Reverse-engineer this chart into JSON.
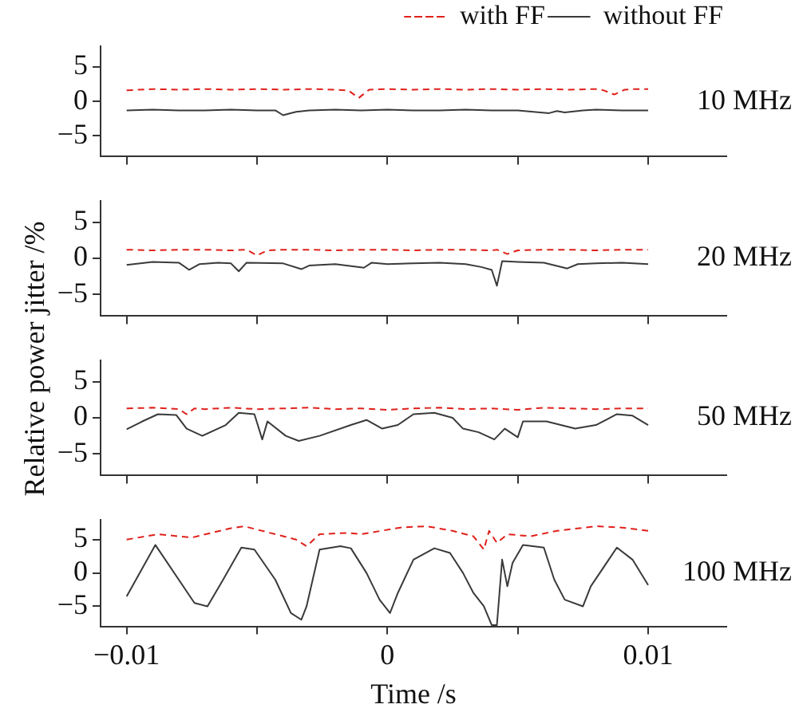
{
  "chart_data": [
    {
      "type": "line",
      "ylabel": "Relative power jitter /%",
      "legend": "top right",
      "annotations": [
        "10 MHz"
      ],
      "grid": false,
      "tick_labels": "y",
      "xlim": [
        -0.011,
        0.013
      ],
      "xticks": [
        {
          "value": -0.01,
          "label": null
        },
        {
          "value": -0.005,
          "label": null
        },
        {
          "value": 0,
          "label": null
        },
        {
          "value": 0.005,
          "label": null
        },
        {
          "value": 0.01,
          "label": null
        }
      ],
      "ylim": [
        -8,
        8
      ],
      "yticks": [
        -5,
        0,
        5
      ],
      "series": [
        {
          "name": "with FF",
          "color": "#e0201b",
          "line_style": "dashed",
          "x": [
            -0.01,
            -0.009,
            -0.008,
            -0.007,
            -0.006,
            -0.005,
            -0.004,
            -0.003,
            -0.002,
            -0.0015,
            -0.0011,
            -0.0007,
            0,
            0.001,
            0.002,
            0.003,
            0.004,
            0.005,
            0.006,
            0.007,
            0.008,
            0.0083,
            0.0087,
            0.0091,
            0.0095,
            0.01
          ],
          "values": [
            1.6,
            1.8,
            1.7,
            1.8,
            1.7,
            1.8,
            1.7,
            1.8,
            1.7,
            1.6,
            0.5,
            1.7,
            1.8,
            1.7,
            1.8,
            1.7,
            1.8,
            1.7,
            1.8,
            1.7,
            1.8,
            1.6,
            1.0,
            1.7,
            1.8,
            1.8
          ]
        },
        {
          "name": "without FF",
          "color": "#3a3a3a",
          "line_style": "solid",
          "x": [
            -0.01,
            -0.009,
            -0.008,
            -0.007,
            -0.006,
            -0.005,
            -0.0043,
            -0.004,
            -0.0038,
            -0.0035,
            -0.003,
            -0.002,
            -0.001,
            0,
            0.001,
            0.002,
            0.003,
            0.004,
            0.005,
            0.0062,
            0.0065,
            0.0068,
            0.0075,
            0.008,
            0.009,
            0.01
          ],
          "values": [
            -1.3,
            -1.2,
            -1.3,
            -1.3,
            -1.2,
            -1.3,
            -1.3,
            -2.0,
            -1.8,
            -1.5,
            -1.3,
            -1.2,
            -1.3,
            -1.2,
            -1.3,
            -1.3,
            -1.2,
            -1.3,
            -1.3,
            -1.7,
            -1.4,
            -1.6,
            -1.3,
            -1.2,
            -1.3,
            -1.3
          ]
        }
      ]
    },
    {
      "type": "line",
      "annotations": [
        "20 MHz"
      ],
      "grid": false,
      "tick_labels": "y",
      "xlim": [
        -0.011,
        0.013
      ],
      "xticks": [
        {
          "value": -0.01,
          "label": null
        },
        {
          "value": -0.005,
          "label": null
        },
        {
          "value": 0,
          "label": null
        },
        {
          "value": 0.005,
          "label": null
        },
        {
          "value": 0.01,
          "label": null
        }
      ],
      "ylim": [
        -8,
        8
      ],
      "yticks": [
        -5,
        0,
        5
      ],
      "series": [
        {
          "color": "#e0201b",
          "line_style": "dashed",
          "x": [
            -0.01,
            -0.009,
            -0.008,
            -0.007,
            -0.006,
            -0.0054,
            -0.005,
            -0.0046,
            -0.004,
            -0.003,
            -0.002,
            -0.001,
            0,
            0.001,
            0.002,
            0.003,
            0.004,
            0.0042,
            0.0046,
            0.005,
            0.006,
            0.007,
            0.008,
            0.009,
            0.01
          ],
          "values": [
            1.2,
            1.1,
            1.2,
            1.2,
            1.1,
            1.2,
            0.4,
            1.1,
            1.2,
            1.2,
            1.1,
            1.2,
            1.2,
            1.1,
            1.2,
            1.2,
            1.1,
            1.2,
            0.6,
            1.1,
            1.2,
            1.2,
            1.1,
            1.2,
            1.2
          ]
        },
        {
          "color": "#3a3a3a",
          "line_style": "solid",
          "x": [
            -0.01,
            -0.009,
            -0.008,
            -0.0076,
            -0.0072,
            -0.0065,
            -0.006,
            -0.0057,
            -0.0054,
            -0.004,
            -0.0033,
            -0.003,
            -0.002,
            -0.0009,
            -0.0006,
            0,
            0.001,
            0.002,
            0.003,
            0.0036,
            0.004,
            0.0042,
            0.0044,
            0.005,
            0.006,
            0.0069,
            0.0073,
            0.008,
            0.009,
            0.01
          ],
          "values": [
            -0.9,
            -0.5,
            -0.6,
            -1.6,
            -0.8,
            -0.6,
            -0.7,
            -1.8,
            -0.6,
            -0.7,
            -1.5,
            -1.0,
            -0.8,
            -1.3,
            -0.6,
            -0.8,
            -0.7,
            -0.6,
            -0.8,
            -1.2,
            -1.6,
            -3.8,
            -0.4,
            -0.5,
            -0.6,
            -1.4,
            -0.8,
            -0.7,
            -0.6,
            -0.8
          ]
        }
      ]
    },
    {
      "type": "line",
      "annotations": [
        "50 MHz"
      ],
      "grid": false,
      "tick_labels": "y",
      "xlim": [
        -0.011,
        0.013
      ],
      "xticks": [
        {
          "value": -0.01,
          "label": null
        },
        {
          "value": -0.005,
          "label": null
        },
        {
          "value": 0,
          "label": null
        },
        {
          "value": 0.005,
          "label": null
        },
        {
          "value": 0.01,
          "label": null
        }
      ],
      "ylim": [
        -8,
        8
      ],
      "yticks": [
        -5,
        0,
        5
      ],
      "series": [
        {
          "color": "#e0201b",
          "line_style": "dashed",
          "x": [
            -0.01,
            -0.009,
            -0.008,
            -0.0077,
            -0.0074,
            -0.007,
            -0.006,
            -0.005,
            -0.004,
            -0.003,
            -0.002,
            -0.001,
            0,
            0.001,
            0.002,
            0.003,
            0.004,
            0.005,
            0.006,
            0.007,
            0.008,
            0.009,
            0.01
          ],
          "values": [
            1.3,
            1.4,
            1.2,
            0.5,
            1.3,
            1.2,
            1.4,
            1.2,
            1.3,
            1.4,
            1.2,
            1.3,
            1.1,
            1.3,
            1.4,
            1.2,
            1.3,
            1.1,
            1.4,
            1.3,
            1.2,
            1.3,
            1.3
          ]
        },
        {
          "color": "#3a3a3a",
          "line_style": "solid",
          "x": [
            -0.01,
            -0.0094,
            -0.0088,
            -0.0081,
            -0.0077,
            -0.0071,
            -0.0062,
            -0.0057,
            -0.0051,
            -0.0048,
            -0.0046,
            -0.0039,
            -0.0034,
            -0.0026,
            -0.0014,
            -0.0008,
            -0.0002,
            0.0004,
            0.001,
            0.0018,
            0.0025,
            0.0029,
            0.0035,
            0.0041,
            0.0045,
            0.005,
            0.0052,
            0.0061,
            0.0072,
            0.008,
            0.0088,
            0.0094,
            0.01
          ],
          "values": [
            -1.6,
            -0.5,
            0.5,
            0.4,
            -1.5,
            -2.5,
            -1.0,
            0.7,
            0.5,
            -3.0,
            -0.5,
            -2.5,
            -3.2,
            -2.5,
            -1.0,
            -0.3,
            -1.5,
            -1.0,
            0.5,
            0.7,
            0.0,
            -1.5,
            -2.0,
            -3.0,
            -1.5,
            -2.7,
            -0.5,
            -0.5,
            -1.5,
            -1.0,
            0.5,
            0.3,
            -1.0
          ]
        }
      ]
    },
    {
      "type": "line",
      "xlabel": "Time /s",
      "annotations": [
        "100 MHz"
      ],
      "grid": false,
      "xlim": [
        -0.011,
        0.013
      ],
      "xticks": [
        -0.01,
        {
          "value": -0.005,
          "label": null
        },
        0,
        {
          "value": 0.005,
          "label": null
        },
        0.01
      ],
      "ylim": [
        -8,
        8
      ],
      "yticks": [
        -5,
        0,
        5
      ],
      "series": [
        {
          "color": "#e0201b",
          "line_style": "dashed",
          "x": [
            -0.01,
            -0.0088,
            -0.0075,
            -0.006,
            -0.0055,
            -0.0045,
            -0.0035,
            -0.0031,
            -0.0026,
            -0.0015,
            -0.001,
            0.0005,
            0.0015,
            0.0025,
            0.0033,
            0.0037,
            0.0039,
            0.0042,
            0.0046,
            0.0055,
            0.0065,
            0.008,
            0.009,
            0.01
          ],
          "values": [
            5.0,
            5.8,
            5.3,
            6.7,
            7.0,
            6.0,
            5.0,
            4.0,
            5.8,
            6.0,
            5.8,
            6.8,
            7.0,
            6.3,
            5.5,
            3.5,
            6.3,
            4.5,
            5.8,
            5.5,
            6.3,
            7.0,
            6.8,
            6.3
          ]
        },
        {
          "color": "#3a3a3a",
          "line_style": "solid",
          "x": [
            -0.01,
            -0.0089,
            -0.0074,
            -0.0069,
            -0.0063,
            -0.0056,
            -0.0051,
            -0.0043,
            -0.0037,
            -0.0033,
            -0.0031,
            -0.0026,
            -0.0018,
            -0.0014,
            -0.0008,
            -0.0003,
            0.0001,
            0.0004,
            0.001,
            0.0018,
            0.0024,
            0.0029,
            0.0033,
            0.0037,
            0.004,
            0.0042,
            0.0044,
            0.0045,
            0.0046,
            0.0048,
            0.0052,
            0.006,
            0.0064,
            0.0068,
            0.0075,
            0.0078,
            0.0088,
            0.0094,
            0.01
          ],
          "values": [
            -3.5,
            4.2,
            -4.5,
            -5.0,
            -1.0,
            3.8,
            3.5,
            -1.0,
            -6.0,
            -7.0,
            -5.0,
            3.5,
            4.0,
            3.7,
            0.0,
            -4.0,
            -6.0,
            -3.0,
            2.0,
            3.7,
            3.0,
            0.0,
            -3.0,
            -5.0,
            -7.8,
            -7.8,
            2.0,
            0.0,
            -2.0,
            1.5,
            4.2,
            3.8,
            -1.0,
            -4.0,
            -5.0,
            -2.0,
            3.8,
            2.0,
            -1.8
          ]
        }
      ]
    }
  ]
}
